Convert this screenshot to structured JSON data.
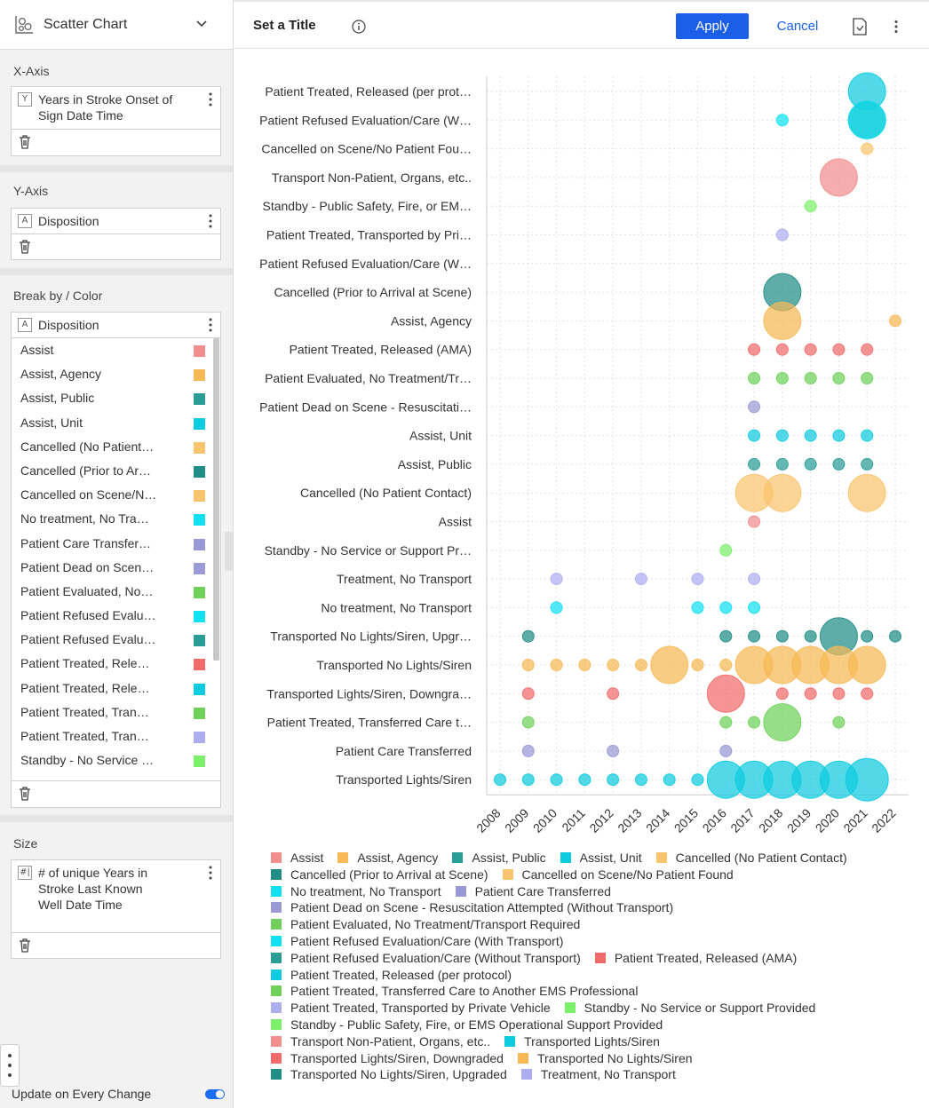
{
  "panel": {
    "chart_type": "Scatter Chart",
    "chart_type_icon": "scatter-chart-icon",
    "x_axis": {
      "section_label": "X-Axis",
      "badge": "Y",
      "field": "Years in Stroke Onset of Sign Date Time"
    },
    "y_axis": {
      "section_label": "Y-Axis",
      "badge": "A",
      "field": "Disposition"
    },
    "color": {
      "section_label": "Break by / Color",
      "badge": "A",
      "field": "Disposition",
      "items": [
        {
          "label": "Assist",
          "color": "#f28e8e"
        },
        {
          "label": "Assist, Agency",
          "color": "#f7b955"
        },
        {
          "label": "Assist, Public",
          "color": "#2a9d96"
        },
        {
          "label": "Assist, Unit",
          "color": "#0ecbdf"
        },
        {
          "label": "Cancelled (No Patient…",
          "color": "#f9c46e"
        },
        {
          "label": "Cancelled (Prior to Ar…",
          "color": "#208d86"
        },
        {
          "label": "Cancelled on Scene/N…",
          "color": "#f9c46e"
        },
        {
          "label": "No treatment, No Tra…",
          "color": "#12e0f2"
        },
        {
          "label": "Patient Care Transfer…",
          "color": "#9898d6"
        },
        {
          "label": "Patient Dead on Scen…",
          "color": "#9a9ad4"
        },
        {
          "label": "Patient Evaluated, No…",
          "color": "#6fd15a"
        },
        {
          "label": "Patient Refused Evalu…",
          "color": "#10e2f4"
        },
        {
          "label": "Patient Refused Evalu…",
          "color": "#2a9d96"
        },
        {
          "label": "Patient Treated, Rele…",
          "color": "#f16b6b"
        },
        {
          "label": "Patient Treated, Rele…",
          "color": "#0ecbdf"
        },
        {
          "label": "Patient Treated, Tran…",
          "color": "#6fd15a"
        },
        {
          "label": "Patient Treated, Tran…",
          "color": "#adadf2"
        },
        {
          "label": "Standby - No Service …",
          "color": "#7cf06a"
        }
      ]
    },
    "size": {
      "section_label": "Size",
      "badge": "#|",
      "field": "# of unique Years in Stroke Last Known Well Date Time"
    },
    "update_label": "Update on Every Change",
    "update_on": true
  },
  "header": {
    "title": "Set a Title",
    "apply_label": "Apply",
    "cancel_label": "Cancel"
  },
  "chart_data": {
    "type": "scatter",
    "title": "",
    "xlabel": "",
    "ylabel": "",
    "x_ticks": [
      "2008",
      "2009",
      "2010",
      "2011",
      "2012",
      "2013",
      "2014",
      "2015",
      "2016",
      "2017",
      "2018",
      "2019",
      "2020",
      "2021",
      "2022"
    ],
    "grid": true,
    "y_categories": [
      "Patient Treated, Released (per prot…",
      "Patient Refused Evaluation/Care (W…",
      "Cancelled on Scene/No Patient Fou…",
      "Transport Non-Patient, Organs, etc..",
      "Standby - Public Safety, Fire, or EM…",
      "Patient Treated, Transported by Pri…",
      "Patient Refused Evaluation/Care (W…",
      "Cancelled (Prior to Arrival at Scene)",
      "Assist, Agency",
      "Patient Treated, Released (AMA)",
      "Patient Evaluated, No Treatment/Tr…",
      "Patient Dead on Scene - Resuscitati…",
      "Assist, Unit",
      "Assist, Public",
      "Cancelled (No Patient Contact)",
      "Assist",
      "Standby - No Service or Support Pr…",
      "Treatment, No Transport",
      "No treatment, No Transport",
      "Transported No Lights/Siren, Upgr…",
      "Transported No Lights/Siren",
      "Transported Lights/Siren, Downgra…",
      "Patient Treated, Transferred Care t…",
      "Patient Care Transferred",
      "Transported Lights/Siren"
    ],
    "series": [
      {
        "name": "Patient Treated, Released (per protocol)",
        "color": "#0ecbdf",
        "points": [
          [
            2021,
            3
          ]
        ]
      },
      {
        "name": "Patient Refused Evaluation/Care (Without Transport)",
        "color": "#2a9d96",
        "points": [
          [
            2021,
            3
          ]
        ]
      },
      {
        "name": "Cancelled on Scene/No Patient Found",
        "color": "#f9c46e",
        "points": [
          [
            2021,
            1
          ]
        ]
      },
      {
        "name": "Transport Non-Patient, Organs, etc..",
        "color": "#f28e8e",
        "points": [
          [
            2020,
            3
          ]
        ]
      },
      {
        "name": "Standby - Public Safety, Fire, or EMS Operational Support Provided",
        "color": "#7cf06a",
        "points": [
          [
            2019,
            1
          ]
        ]
      },
      {
        "name": "Patient Treated, Transported by Private Vehicle",
        "color": "#adadf2",
        "points": [
          [
            2018,
            1
          ]
        ]
      },
      {
        "name": "Patient Refused Evaluation/Care (With Transport)",
        "color": "#10e2f4",
        "points": [
          [
            2018,
            1
          ],
          [
            2021,
            3
          ]
        ]
      },
      {
        "name": "Cancelled (Prior to Arrival at Scene)",
        "color": "#208d86",
        "points": [
          [
            2018,
            3
          ]
        ]
      },
      {
        "name": "Assist, Agency",
        "color": "#f7b955",
        "points": [
          [
            2018,
            3
          ],
          [
            2022,
            1
          ]
        ]
      },
      {
        "name": "Patient Treated, Released (AMA)",
        "color": "#f16b6b",
        "points": [
          [
            2017,
            1
          ],
          [
            2018,
            1
          ],
          [
            2019,
            1
          ],
          [
            2020,
            1
          ],
          [
            2021,
            1
          ]
        ]
      },
      {
        "name": "Patient Evaluated, No Treatment/Transport Required",
        "color": "#6fd15a",
        "points": [
          [
            2017,
            1
          ],
          [
            2018,
            1
          ],
          [
            2019,
            1
          ],
          [
            2020,
            1
          ],
          [
            2021,
            1
          ]
        ]
      },
      {
        "name": "Patient Dead on Scene - Resuscitation Attempted (Without Transport)",
        "color": "#9a9ad4",
        "points": [
          [
            2017,
            1
          ]
        ]
      },
      {
        "name": "Assist, Unit",
        "color": "#0ecbdf",
        "points": [
          [
            2017,
            1
          ],
          [
            2018,
            1
          ],
          [
            2019,
            1
          ],
          [
            2020,
            1
          ],
          [
            2021,
            1
          ]
        ]
      },
      {
        "name": "Assist, Public",
        "color": "#2a9d96",
        "points": [
          [
            2017,
            1
          ],
          [
            2018,
            1
          ],
          [
            2019,
            1
          ],
          [
            2020,
            1
          ],
          [
            2021,
            1
          ]
        ]
      },
      {
        "name": "Cancelled (No Patient Contact)",
        "color": "#f9c46e",
        "points": [
          [
            2017,
            3
          ],
          [
            2018,
            3
          ],
          [
            2021,
            3
          ]
        ]
      },
      {
        "name": "Assist",
        "color": "#f28e8e",
        "points": [
          [
            2017,
            1
          ]
        ]
      },
      {
        "name": "Standby - No Service or Support Provided",
        "color": "#7cf06a",
        "points": [
          [
            2016,
            1
          ]
        ]
      },
      {
        "name": "Treatment, No Transport",
        "color": "#adadf2",
        "points": [
          [
            2010,
            1
          ],
          [
            2013,
            1
          ],
          [
            2015,
            1
          ],
          [
            2017,
            1
          ]
        ]
      },
      {
        "name": "No treatment, No Transport",
        "color": "#12e0f2",
        "points": [
          [
            2010,
            1
          ],
          [
            2015,
            1
          ],
          [
            2016,
            1
          ],
          [
            2017,
            1
          ]
        ]
      },
      {
        "name": "Transported No Lights/Siren, Upgraded",
        "color": "#208d86",
        "points": [
          [
            2009,
            1
          ],
          [
            2016,
            1
          ],
          [
            2017,
            1
          ],
          [
            2018,
            1
          ],
          [
            2019,
            1
          ],
          [
            2020,
            3
          ],
          [
            2021,
            1
          ],
          [
            2022,
            1
          ]
        ]
      },
      {
        "name": "Transported No Lights/Siren",
        "color": "#f7b955",
        "points": [
          [
            2009,
            1
          ],
          [
            2010,
            1
          ],
          [
            2011,
            1
          ],
          [
            2012,
            1
          ],
          [
            2013,
            1
          ],
          [
            2014,
            3
          ],
          [
            2015,
            1
          ],
          [
            2016,
            1
          ],
          [
            2017,
            3
          ],
          [
            2018,
            3
          ],
          [
            2019,
            3
          ],
          [
            2020,
            3
          ],
          [
            2021,
            3
          ]
        ]
      },
      {
        "name": "Transported Lights/Siren, Downgraded",
        "color": "#f16b6b",
        "points": [
          [
            2009,
            1
          ],
          [
            2012,
            1
          ],
          [
            2016,
            3
          ],
          [
            2018,
            1
          ],
          [
            2019,
            1
          ],
          [
            2020,
            1
          ],
          [
            2021,
            1
          ]
        ]
      },
      {
        "name": "Patient Treated, Transferred Care to Another EMS Professional",
        "color": "#6fd15a",
        "points": [
          [
            2009,
            1
          ],
          [
            2016,
            1
          ],
          [
            2017,
            1
          ],
          [
            2018,
            3
          ],
          [
            2020,
            1
          ]
        ]
      },
      {
        "name": "Patient Care Transferred",
        "color": "#9898d6",
        "points": [
          [
            2009,
            1
          ],
          [
            2012,
            1
          ],
          [
            2016,
            1
          ]
        ]
      },
      {
        "name": "Transported Lights/Siren",
        "color": "#0ecbdf",
        "points": [
          [
            2008,
            1
          ],
          [
            2009,
            1
          ],
          [
            2010,
            1
          ],
          [
            2011,
            1
          ],
          [
            2012,
            1
          ],
          [
            2013,
            1
          ],
          [
            2014,
            1
          ],
          [
            2015,
            1
          ],
          [
            2016,
            3
          ],
          [
            2017,
            3
          ],
          [
            2018,
            3
          ],
          [
            2019,
            3
          ],
          [
            2020,
            3
          ],
          [
            2021,
            4
          ]
        ]
      }
    ],
    "legend_rows": [
      [
        {
          "label": "Assist",
          "color": "#f28e8e"
        },
        {
          "label": "Assist, Agency",
          "color": "#f7b955"
        },
        {
          "label": "Assist, Public",
          "color": "#2a9d96"
        },
        {
          "label": "Assist, Unit",
          "color": "#0ecbdf"
        },
        {
          "label": "Cancelled (No Patient Contact)",
          "color": "#f9c46e"
        }
      ],
      [
        {
          "label": "Cancelled (Prior to Arrival at Scene)",
          "color": "#208d86"
        },
        {
          "label": "Cancelled on Scene/No Patient Found",
          "color": "#f9c46e"
        }
      ],
      [
        {
          "label": "No treatment, No Transport",
          "color": "#12e0f2"
        },
        {
          "label": "Patient Care Transferred",
          "color": "#9898d6"
        }
      ],
      [
        {
          "label": "Patient Dead on Scene - Resuscitation Attempted (Without Transport)",
          "color": "#9a9ad4"
        }
      ],
      [
        {
          "label": "Patient Evaluated, No Treatment/Transport Required",
          "color": "#6fd15a"
        }
      ],
      [
        {
          "label": "Patient Refused Evaluation/Care (With Transport)",
          "color": "#10e2f4"
        }
      ],
      [
        {
          "label": "Patient Refused Evaluation/Care (Without Transport)",
          "color": "#2a9d96"
        },
        {
          "label": "Patient Treated, Released (AMA)",
          "color": "#f16b6b"
        }
      ],
      [
        {
          "label": "Patient Treated, Released (per protocol)",
          "color": "#0ecbdf"
        }
      ],
      [
        {
          "label": "Patient Treated, Transferred Care to Another EMS Professional",
          "color": "#6fd15a"
        }
      ],
      [
        {
          "label": "Patient Treated, Transported by Private Vehicle",
          "color": "#adadf2"
        },
        {
          "label": "Standby - No Service or Support Provided",
          "color": "#7cf06a"
        }
      ],
      [
        {
          "label": "Standby - Public Safety, Fire, or EMS Operational Support Provided",
          "color": "#7cf06a"
        }
      ],
      [
        {
          "label": "Transport Non-Patient, Organs, etc..",
          "color": "#f28e8e"
        },
        {
          "label": "Transported Lights/Siren",
          "color": "#0ecbdf"
        }
      ],
      [
        {
          "label": "Transported Lights/Siren, Downgraded",
          "color": "#f16b6b"
        },
        {
          "label": "Transported No Lights/Siren",
          "color": "#f7b955"
        }
      ],
      [
        {
          "label": "Transported No Lights/Siren, Upgraded",
          "color": "#208d86"
        },
        {
          "label": "Treatment, No Transport",
          "color": "#adadf2"
        }
      ]
    ]
  }
}
